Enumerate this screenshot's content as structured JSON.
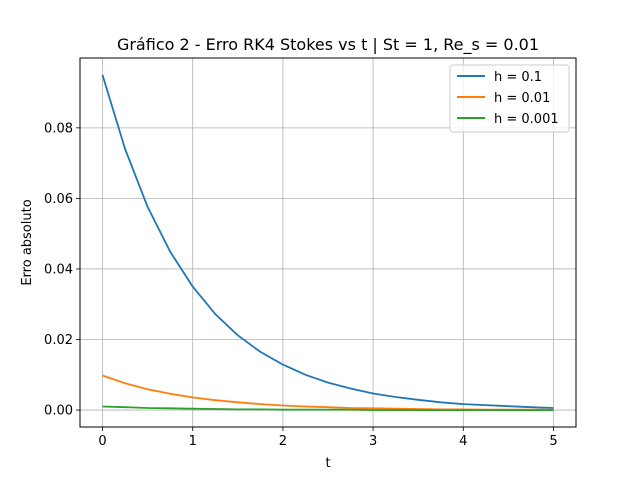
{
  "chart_data": {
    "type": "line",
    "title": "Gráfico 2 - Erro RK4 Stokes vs t | St = 1, Re_s = 0.01",
    "xlabel": "t",
    "ylabel": "Erro absoluto",
    "xlim": [
      -0.25,
      5.25
    ],
    "ylim": [
      -0.0048,
      0.0998
    ],
    "xticks": [
      0,
      1,
      2,
      3,
      4,
      5
    ],
    "xtick_labels": [
      "0",
      "1",
      "2",
      "3",
      "4",
      "5"
    ],
    "yticks": [
      0.0,
      0.02,
      0.04,
      0.06,
      0.08
    ],
    "ytick_labels": [
      "0.00",
      "0.02",
      "0.04",
      "0.06",
      "0.08"
    ],
    "grid": true,
    "legend_position": "top-right",
    "series": [
      {
        "name": "h = 0.1",
        "color": "#1f77b4",
        "x": [
          0,
          0.25,
          0.5,
          0.75,
          1,
          1.25,
          1.5,
          1.75,
          2,
          2.25,
          2.5,
          2.75,
          3,
          3.25,
          3.5,
          3.75,
          4,
          4.25,
          4.5,
          4.75,
          5
        ],
        "y": [
          0.095,
          0.074,
          0.0576,
          0.0449,
          0.035,
          0.0272,
          0.0212,
          0.0165,
          0.0129,
          0.01,
          0.0078,
          0.0061,
          0.0047,
          0.0037,
          0.0029,
          0.0022,
          0.0017,
          0.0014,
          0.0011,
          0.0008,
          0.0006
        ]
      },
      {
        "name": "h = 0.01",
        "color": "#ff7f0e",
        "x": [
          0,
          0.25,
          0.5,
          0.75,
          1,
          1.25,
          1.5,
          1.75,
          2,
          2.25,
          2.5,
          2.75,
          3,
          3.25,
          3.5,
          3.75,
          4,
          4.25,
          4.5,
          4.75,
          5
        ],
        "y": [
          0.0098,
          0.0076,
          0.0059,
          0.0046,
          0.0036,
          0.0028,
          0.0022,
          0.0017,
          0.0013,
          0.001,
          0.0008,
          0.0006,
          0.0005,
          0.0004,
          0.0003,
          0.0002,
          0.0002,
          0.0001,
          0.0001,
          0.0001,
          0.0001
        ]
      },
      {
        "name": "h = 0.001",
        "color": "#2ca02c",
        "x": [
          0,
          0.25,
          0.5,
          0.75,
          1,
          1.25,
          1.5,
          1.75,
          2,
          2.25,
          2.5,
          2.75,
          3,
          3.25,
          3.5,
          3.75,
          4,
          4.25,
          4.5,
          4.75,
          5
        ],
        "y": [
          0.001,
          0.0008,
          0.0006,
          0.0005,
          0.0004,
          0.0003,
          0.0002,
          0.0002,
          0.0001,
          0.0001,
          0.0001,
          0.0001,
          0.0,
          0.0,
          0.0,
          0.0,
          0.0,
          0.0,
          0.0,
          0.0,
          0.0
        ]
      }
    ]
  }
}
